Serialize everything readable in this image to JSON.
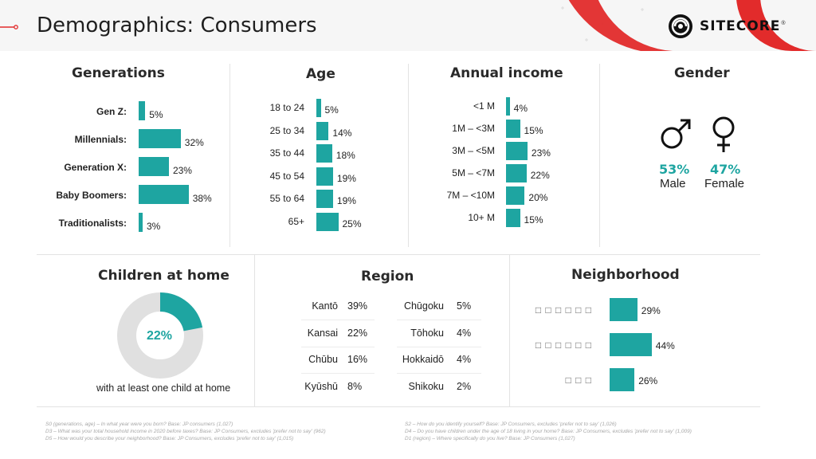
{
  "header": {
    "title": "Demographics: Consumers",
    "brand": "SITECORE",
    "brand_mark": "®"
  },
  "colors": {
    "accent": "#1ea5a1",
    "header_red": "#e22b2b",
    "track": "#e0e0e0"
  },
  "chart_data": [
    {
      "type": "bar",
      "title": "Generations",
      "categories": [
        "Gen Z:",
        "Millennials:",
        "Generation X:",
        "Baby Boomers:",
        "Traditionalists:"
      ],
      "values": [
        5,
        32,
        23,
        38,
        3
      ],
      "value_labels": [
        "5%",
        "32%",
        "23%",
        "38%",
        "3%"
      ]
    },
    {
      "type": "bar",
      "title": "Age",
      "categories": [
        "18 to 24",
        "25 to 34",
        "35 to 44",
        "45 to 54",
        "55 to 64",
        "65+"
      ],
      "values": [
        5,
        14,
        18,
        19,
        19,
        25
      ],
      "value_labels": [
        "5%",
        "14%",
        "18%",
        "19%",
        "19%",
        "25%"
      ]
    },
    {
      "type": "bar",
      "title": "Annual income",
      "categories": [
        "<1 M",
        "1M – <3M",
        "3M – <5M",
        "5M – <7M",
        "7M – <10M",
        "10+ M"
      ],
      "values": [
        4,
        15,
        23,
        22,
        20,
        15
      ],
      "value_labels": [
        "4%",
        "15%",
        "23%",
        "22%",
        "20%",
        "15%"
      ]
    },
    {
      "type": "pie",
      "title": "Gender",
      "categories": [
        "Male",
        "Female"
      ],
      "values": [
        53,
        47
      ],
      "value_labels": [
        "53%",
        "47%"
      ]
    },
    {
      "type": "pie",
      "title": "Children at home",
      "values": [
        22
      ],
      "value_labels": [
        "22%"
      ],
      "caption": "with at least one child at home"
    },
    {
      "type": "table",
      "title": "Region",
      "rows": [
        {
          "name": "Kantō",
          "value": "39%"
        },
        {
          "name": "Kansai",
          "value": "22%"
        },
        {
          "name": "Chūbu",
          "value": "16%"
        },
        {
          "name": "Kyūshū",
          "value": "8%"
        },
        {
          "name": "Chūgoku",
          "value": "5%"
        },
        {
          "name": "Tōhoku",
          "value": "4%"
        },
        {
          "name": "Hokkaidō",
          "value": "4%"
        },
        {
          "name": "Shikoku",
          "value": "2%"
        }
      ]
    },
    {
      "type": "bar",
      "title": "Neighborhood",
      "categories": [
        "□ □ □ □ □ □",
        "□ □ □ □ □ □",
        "□ □ □"
      ],
      "values": [
        29,
        44,
        26
      ],
      "value_labels": [
        "29%",
        "44%",
        "26%"
      ]
    }
  ],
  "footnotes": {
    "left": [
      "S0 (generations, age) – In what year were you born? Base: JP consumers (1,027)",
      "D3 – What was your total household income in 2020 before taxes? Base: JP Consumers, excludes 'prefer not to say' (962)",
      "D5 – How would you describe your neighborhood? Base: JP Consumers, excludes 'prefer not to say' (1,015)"
    ],
    "right": [
      "S2 – How do you identify yourself? Base: JP Consumers, excludes 'prefer not to say' (1,026)",
      "D4 – Do you have children under the age of 18 living in your home? Base: JP Consumers, excludes 'prefer not to say' (1,009)",
      "D1 (region) – Where specifically do you live? Base: JP Consumers (1,027)"
    ]
  }
}
